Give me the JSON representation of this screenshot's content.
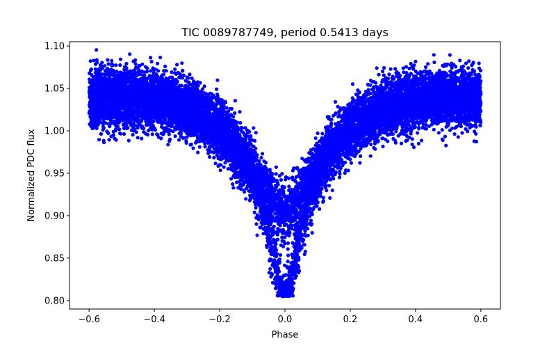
{
  "chart_data": {
    "type": "scatter",
    "title": "TIC 0089787749, period 0.5413 days",
    "xlabel": "Phase",
    "ylabel": "Normalized PDC flux",
    "xlim": [
      -0.66,
      0.66
    ],
    "ylim": [
      0.79,
      1.105
    ],
    "xticks": [
      -0.6,
      -0.4,
      -0.2,
      0.0,
      0.2,
      0.4,
      0.6
    ],
    "xtick_labels": [
      "−0.6",
      "−0.4",
      "−0.2",
      "0.0",
      "0.2",
      "0.4",
      "0.6"
    ],
    "yticks": [
      0.8,
      0.85,
      0.9,
      0.95,
      1.0,
      1.05,
      1.1
    ],
    "ytick_labels": [
      "0.80",
      "0.85",
      "0.90",
      "0.95",
      "1.00",
      "1.05",
      "1.10"
    ],
    "grid": false,
    "marker_color": "#0000ff",
    "series": [
      {
        "name": "PDC flux",
        "phase_range": [
          -0.6,
          0.6
        ],
        "out_of_eclipse_flux": 1.04,
        "flux_scatter_range": [
          0.97,
          1.1
        ],
        "primary_eclipse": {
          "phase": 0.0,
          "min_flux": 0.805
        },
        "secondary_branch_min_flux": 0.89,
        "approx_points": 12000
      }
    ]
  }
}
